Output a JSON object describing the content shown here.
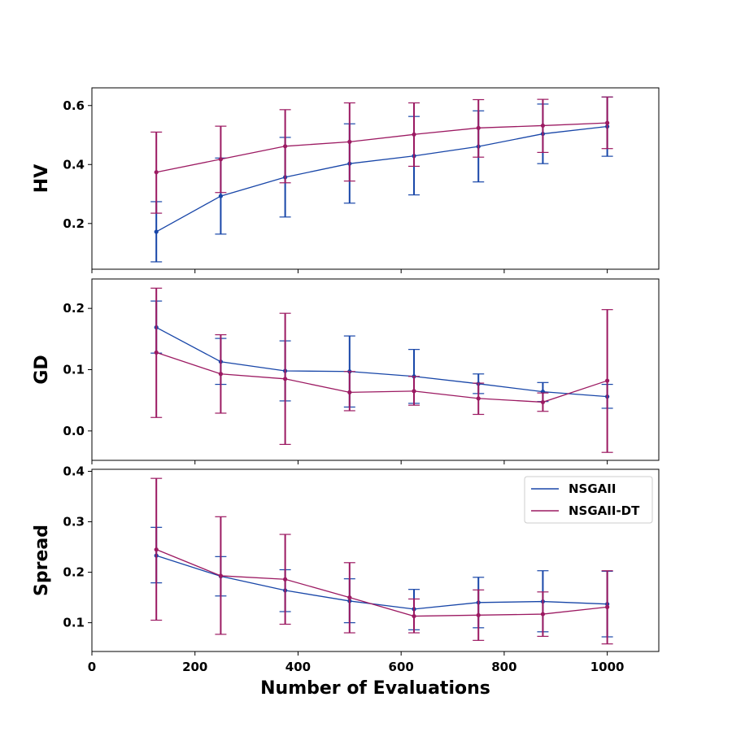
{
  "chart_data": [
    {
      "type": "line",
      "ylabel": "HV",
      "xlim": [
        0,
        1100
      ],
      "ylim": [
        0.045,
        0.66
      ],
      "yticks": [
        0.2,
        0.4,
        0.6
      ],
      "ytick_labels": [
        "0.2",
        "0.4",
        "0.6"
      ],
      "xticks": [
        0,
        200,
        400,
        600,
        800,
        1000
      ],
      "x": [
        125,
        250,
        375,
        500,
        625,
        750,
        875,
        1000
      ],
      "series": [
        {
          "name": "NSGAII",
          "color": "#1846a8",
          "values": [
            0.172,
            0.293,
            0.357,
            0.403,
            0.429,
            0.461,
            0.504,
            0.529
          ],
          "err_low": [
            0.07,
            0.164,
            0.222,
            0.269,
            0.297,
            0.341,
            0.403,
            0.428
          ],
          "err_high": [
            0.274,
            0.422,
            0.492,
            0.538,
            0.563,
            0.582,
            0.605,
            0.629
          ]
        },
        {
          "name": "NSGAII-DT",
          "color": "#9c1a62",
          "values": [
            0.374,
            0.418,
            0.462,
            0.477,
            0.502,
            0.524,
            0.532,
            0.541
          ],
          "err_low": [
            0.235,
            0.305,
            0.338,
            0.344,
            0.394,
            0.425,
            0.441,
            0.454
          ],
          "err_high": [
            0.51,
            0.53,
            0.586,
            0.609,
            0.609,
            0.62,
            0.621,
            0.629
          ]
        }
      ]
    },
    {
      "type": "line",
      "ylabel": "GD",
      "xlim": [
        0,
        1100
      ],
      "ylim": [
        -0.048,
        0.248
      ],
      "yticks": [
        0.0,
        0.1,
        0.2
      ],
      "ytick_labels": [
        "0.0",
        "0.1",
        "0.2"
      ],
      "xticks": [
        0,
        200,
        400,
        600,
        800,
        1000
      ],
      "x": [
        125,
        250,
        375,
        500,
        625,
        750,
        875,
        1000
      ],
      "series": [
        {
          "name": "NSGAII",
          "color": "#1846a8",
          "values": [
            0.169,
            0.113,
            0.098,
            0.097,
            0.089,
            0.077,
            0.064,
            0.056
          ],
          "err_low": [
            0.127,
            0.076,
            0.049,
            0.039,
            0.045,
            0.061,
            0.048,
            0.037
          ],
          "err_high": [
            0.212,
            0.151,
            0.147,
            0.155,
            0.133,
            0.093,
            0.079,
            0.076
          ]
        },
        {
          "name": "NSGAII-DT",
          "color": "#9c1a62",
          "values": [
            0.128,
            0.093,
            0.085,
            0.063,
            0.065,
            0.053,
            0.047,
            0.082
          ],
          "err_low": [
            0.022,
            0.029,
            -0.022,
            0.033,
            0.042,
            0.027,
            0.032,
            -0.035
          ],
          "err_high": [
            0.233,
            0.157,
            0.192,
            0.097,
            0.089,
            0.078,
            0.062,
            0.198
          ]
        }
      ]
    },
    {
      "type": "line",
      "ylabel": "Spread",
      "xlabel": "Number of Evaluations",
      "xlim": [
        0,
        1100
      ],
      "ylim": [
        0.043,
        0.404
      ],
      "yticks": [
        0.1,
        0.2,
        0.3,
        0.4
      ],
      "ytick_labels": [
        "0.1",
        "0.2",
        "0.3",
        "0.4"
      ],
      "xticks": [
        0,
        200,
        400,
        600,
        800,
        1000
      ],
      "xtick_labels": [
        "0",
        "200",
        "400",
        "600",
        "800",
        "1000"
      ],
      "legend": {
        "placement": "upper-right",
        "entries": [
          "NSGAII",
          "NSGAII-DT"
        ]
      },
      "x": [
        125,
        250,
        375,
        500,
        625,
        750,
        875,
        1000
      ],
      "series": [
        {
          "name": "NSGAII",
          "color": "#1846a8",
          "values": [
            0.233,
            0.192,
            0.164,
            0.143,
            0.127,
            0.14,
            0.142,
            0.137
          ],
          "err_low": [
            0.179,
            0.153,
            0.122,
            0.1,
            0.086,
            0.09,
            0.082,
            0.072
          ],
          "err_high": [
            0.289,
            0.231,
            0.205,
            0.187,
            0.166,
            0.19,
            0.203,
            0.202
          ]
        },
        {
          "name": "NSGAII-DT",
          "color": "#9c1a62",
          "values": [
            0.245,
            0.193,
            0.186,
            0.15,
            0.113,
            0.115,
            0.117,
            0.131
          ],
          "err_low": [
            0.105,
            0.077,
            0.097,
            0.08,
            0.08,
            0.065,
            0.073,
            0.058
          ],
          "err_high": [
            0.386,
            0.31,
            0.275,
            0.219,
            0.147,
            0.165,
            0.161,
            0.203
          ]
        }
      ]
    }
  ]
}
